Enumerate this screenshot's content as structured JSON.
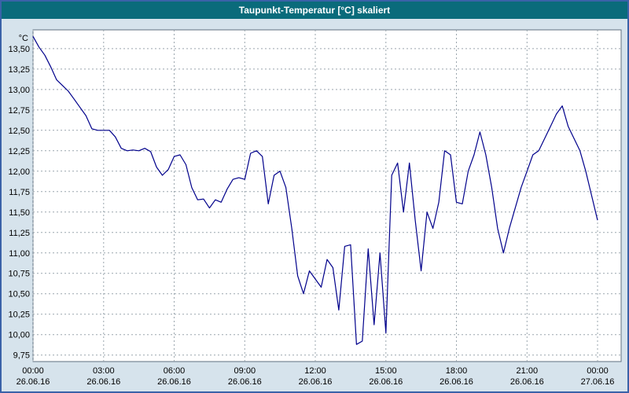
{
  "title": "Taupunkt-Temperatur [°C] skaliert",
  "colors": {
    "titlebar": "#0a6b7b",
    "window_border": "#3a62a8",
    "chart_bg": "#d6e3ec",
    "plot_bg": "#ffffff",
    "grid": "#9aa5ad",
    "plot_border": "#607080",
    "line": "#00008b"
  },
  "chart_data": {
    "type": "line",
    "title": "Taupunkt-Temperatur [°C] skaliert",
    "ylabel": "°C",
    "ylim": [
      9.67,
      13.73
    ],
    "xlim_hours": [
      0,
      24
    ],
    "grid": "dashed",
    "legend": "none",
    "y_ticks": [
      {
        "v": 13.5,
        "label": "13,50"
      },
      {
        "v": 13.25,
        "label": "13,25"
      },
      {
        "v": 13.0,
        "label": "13,00"
      },
      {
        "v": 12.75,
        "label": "12,75"
      },
      {
        "v": 12.5,
        "label": "12,50"
      },
      {
        "v": 12.25,
        "label": "12,25"
      },
      {
        "v": 12.0,
        "label": "12,00"
      },
      {
        "v": 11.75,
        "label": "11,75"
      },
      {
        "v": 11.5,
        "label": "11,50"
      },
      {
        "v": 11.25,
        "label": "11,25"
      },
      {
        "v": 11.0,
        "label": "11,00"
      },
      {
        "v": 10.75,
        "label": "10,75"
      },
      {
        "v": 10.5,
        "label": "10,50"
      },
      {
        "v": 10.25,
        "label": "10,25"
      },
      {
        "v": 10.0,
        "label": "10,00"
      },
      {
        "v": 9.75,
        "label": "9,75"
      }
    ],
    "x_ticks": [
      {
        "h": 0,
        "time": "00:00",
        "date": "26.06.16"
      },
      {
        "h": 3,
        "time": "03:00",
        "date": "26.06.16"
      },
      {
        "h": 6,
        "time": "06:00",
        "date": "26.06.16"
      },
      {
        "h": 9,
        "time": "09:00",
        "date": "26.06.16"
      },
      {
        "h": 12,
        "time": "12:00",
        "date": "26.06.16"
      },
      {
        "h": 15,
        "time": "15:00",
        "date": "26.06.16"
      },
      {
        "h": 18,
        "time": "18:00",
        "date": "26.06.16"
      },
      {
        "h": 21,
        "time": "21:00",
        "date": "26.06.16"
      },
      {
        "h": 24,
        "time": "00:00",
        "date": "27.06.16"
      }
    ],
    "series": [
      {
        "name": "Taupunkt-Temperatur",
        "x_start": 0,
        "x_step": 0.25,
        "values": [
          13.65,
          13.52,
          13.42,
          13.28,
          13.12,
          13.05,
          12.98,
          12.88,
          12.78,
          12.68,
          12.52,
          12.5,
          12.5,
          12.5,
          12.42,
          12.28,
          12.25,
          12.26,
          12.25,
          12.28,
          12.24,
          12.05,
          11.95,
          12.02,
          12.18,
          12.2,
          12.08,
          11.8,
          11.65,
          11.66,
          11.55,
          11.65,
          11.62,
          11.78,
          11.9,
          11.92,
          11.9,
          12.22,
          12.25,
          12.18,
          11.6,
          11.95,
          12.0,
          11.8,
          11.3,
          10.72,
          10.5,
          10.78,
          10.68,
          10.58,
          10.92,
          10.82,
          10.3,
          11.08,
          11.1,
          9.88,
          9.92,
          11.05,
          10.12,
          11.0,
          10.02,
          11.95,
          12.1,
          11.5,
          12.1,
          11.4,
          10.78,
          11.5,
          11.3,
          11.62,
          12.25,
          12.2,
          11.62,
          11.6,
          12.0,
          12.2,
          12.48,
          12.2,
          11.8,
          11.3,
          11.0,
          11.3,
          11.55,
          11.8,
          12.0,
          12.2,
          12.25,
          12.4,
          12.55,
          12.7,
          12.8,
          12.55,
          12.4,
          12.25,
          12.0,
          11.7,
          11.4
        ]
      }
    ]
  }
}
